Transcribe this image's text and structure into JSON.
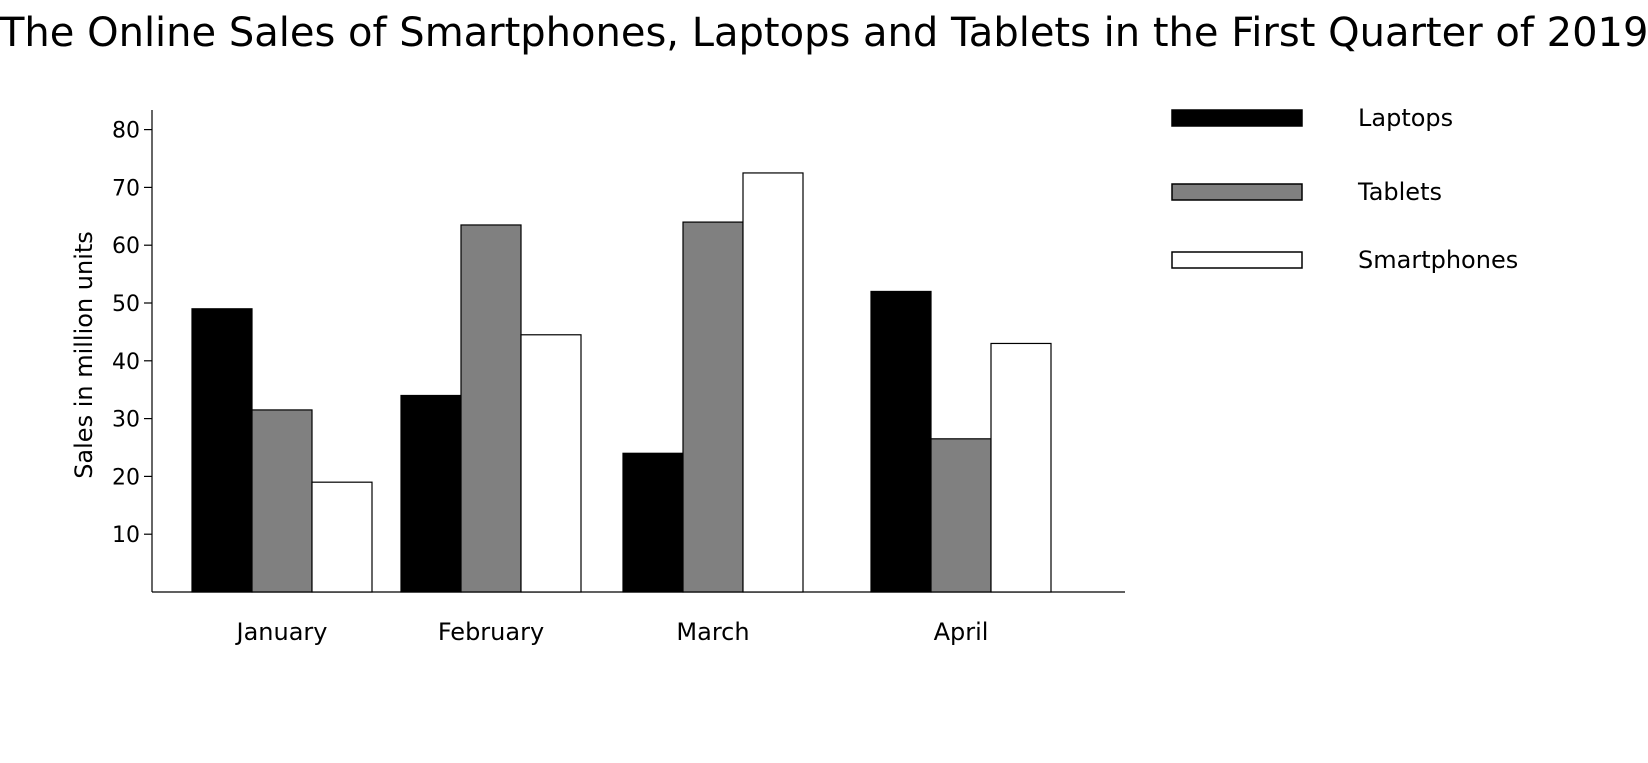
{
  "chart_data": {
    "type": "bar",
    "title": "The Online Sales of Smartphones, Laptops and Tablets in the First Quarter of 2019",
    "xlabel": "",
    "ylabel": "Sales in million units",
    "categories": [
      "January",
      "February",
      "March",
      "April"
    ],
    "series": [
      {
        "name": "Laptops",
        "color": "#000000",
        "values": [
          49,
          34,
          24,
          52
        ]
      },
      {
        "name": "Tablets",
        "color": "#808080",
        "values": [
          31.5,
          63.5,
          64,
          26.5
        ]
      },
      {
        "name": "Smartphones",
        "color": "#ffffff",
        "values": [
          19,
          44.5,
          72.5,
          43
        ]
      }
    ],
    "yticks": [
      10,
      20,
      30,
      40,
      50,
      60,
      70,
      80
    ],
    "ylim": [
      0,
      83
    ],
    "grid": false,
    "legend_position": "top-right"
  }
}
